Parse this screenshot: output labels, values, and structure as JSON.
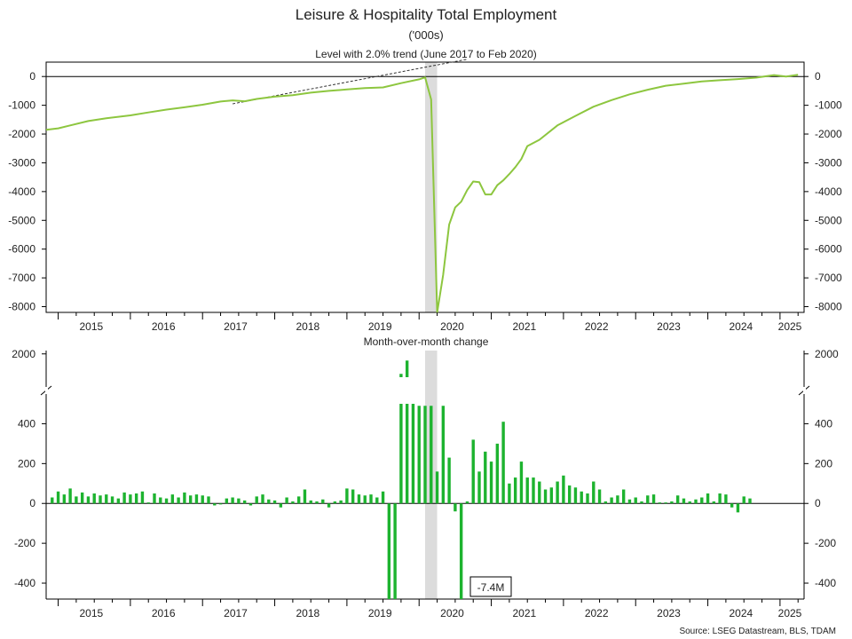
{
  "chart_data": {
    "title": "Leisure & Hospitality Total Employment",
    "subtitle": "('000s)",
    "source": "Source: LSEG Datastream, BLS, TDAM",
    "colors": {
      "level": "#8dc63f",
      "change": "#1db32f",
      "trend": "#333333",
      "recession": "#dcdcdc",
      "zero_line": "#000000"
    },
    "x_tick_labels": [
      "2015",
      "2016",
      "2017",
      "2018",
      "2019",
      "2020",
      "2021",
      "2022",
      "2023",
      "2024",
      "2025"
    ],
    "x_range": [
      "2014-11",
      "2025-05"
    ],
    "recession_shade": [
      "2020-02",
      "2020-04"
    ],
    "level_panel": {
      "type": "line",
      "title": "Level with 2.0% trend (June 2017 to Feb 2020)",
      "ylim": [
        -8200,
        500
      ],
      "y_ticks": [
        "0",
        "-1000",
        "-2000",
        "-3000",
        "-4000",
        "-5000",
        "-6000",
        "-7000",
        "-8000"
      ],
      "y_tick_values": [
        0,
        -1000,
        -2000,
        -3000,
        -4000,
        -5000,
        -6000,
        -7000,
        -8000
      ],
      "series": [
        {
          "values": [
            [
              "2014-11",
              -1850
            ],
            [
              "2015-01",
              -1800
            ],
            [
              "2015-03",
              -1700
            ],
            [
              "2015-06",
              -1550
            ],
            [
              "2015-09",
              -1450
            ],
            [
              "2016-01",
              -1350
            ],
            [
              "2016-04",
              -1250
            ],
            [
              "2016-07",
              -1150
            ],
            [
              "2016-10",
              -1070
            ],
            [
              "2017-01",
              -980
            ],
            [
              "2017-04",
              -870
            ],
            [
              "2017-06",
              -830
            ],
            [
              "2017-08",
              -860
            ],
            [
              "2017-10",
              -780
            ],
            [
              "2018-01",
              -700
            ],
            [
              "2018-04",
              -650
            ],
            [
              "2018-07",
              -560
            ],
            [
              "2018-10",
              -500
            ],
            [
              "2019-01",
              -450
            ],
            [
              "2019-04",
              -400
            ],
            [
              "2019-07",
              -380
            ],
            [
              "2019-10",
              -230
            ],
            [
              "2020-01",
              -100
            ],
            [
              "2020-02",
              -30
            ],
            [
              "2020-03",
              -800
            ],
            [
              "2020-04",
              -8200
            ],
            [
              "2020-05",
              -6900
            ],
            [
              "2020-06",
              -5150
            ],
            [
              "2020-07",
              -4550
            ],
            [
              "2020-08",
              -4350
            ],
            [
              "2020-09",
              -3950
            ],
            [
              "2020-10",
              -3650
            ],
            [
              "2020-11",
              -3670
            ],
            [
              "2020-12",
              -4100
            ],
            [
              "2021-01",
              -4100
            ],
            [
              "2021-02",
              -3780
            ],
            [
              "2021-03",
              -3610
            ],
            [
              "2021-04",
              -3390
            ],
            [
              "2021-05",
              -3150
            ],
            [
              "2021-06",
              -2870
            ],
            [
              "2021-07",
              -2420
            ],
            [
              "2021-09",
              -2200
            ],
            [
              "2021-12",
              -1700
            ],
            [
              "2022-03",
              -1370
            ],
            [
              "2022-06",
              -1050
            ],
            [
              "2022-09",
              -820
            ],
            [
              "2022-12",
              -620
            ],
            [
              "2023-03",
              -460
            ],
            [
              "2023-06",
              -320
            ],
            [
              "2023-09",
              -250
            ],
            [
              "2023-12",
              -170
            ],
            [
              "2024-03",
              -130
            ],
            [
              "2024-06",
              -90
            ],
            [
              "2024-09",
              -40
            ],
            [
              "2024-12",
              50
            ],
            [
              "2025-02",
              0
            ],
            [
              "2025-04",
              60
            ]
          ]
        }
      ],
      "trend_line": {
        "start": [
          "2017-06",
          -950
        ],
        "end": [
          "2020-09",
          600
        ]
      }
    },
    "change_panel": {
      "type": "bar",
      "title": "Month-over-month change",
      "annotation": "-7.4M",
      "y_ticks_lower": [
        "400",
        "200",
        "0",
        "-200",
        "-400"
      ],
      "y_tick_lower_values": [
        400,
        200,
        0,
        -200,
        -400
      ],
      "y_tick_upper": "2000",
      "ylim_lower": [
        -480,
        500
      ],
      "ylim_upper": [
        1300,
        2100
      ],
      "start_month": "2014-12",
      "values": [
        30,
        60,
        45,
        75,
        35,
        55,
        35,
        50,
        40,
        45,
        35,
        25,
        55,
        45,
        50,
        60,
        5,
        50,
        30,
        25,
        45,
        30,
        55,
        40,
        45,
        40,
        35,
        -10,
        -5,
        25,
        30,
        25,
        15,
        -10,
        35,
        45,
        20,
        15,
        -20,
        30,
        10,
        35,
        70,
        15,
        10,
        20,
        -20,
        10,
        15,
        75,
        70,
        45,
        40,
        45,
        30,
        60,
        -770,
        -7400,
        1400,
        1800,
        600,
        490,
        490,
        490,
        160,
        490,
        230,
        -40,
        -480,
        10,
        320,
        160,
        260,
        210,
        300,
        410,
        100,
        130,
        210,
        130,
        130,
        110,
        70,
        80,
        110,
        140,
        90,
        80,
        60,
        50,
        110,
        70,
        10,
        30,
        40,
        70,
        20,
        30,
        10,
        40,
        45,
        5,
        5,
        10,
        40,
        25,
        10,
        20,
        30,
        50,
        10,
        50,
        45,
        -20,
        -45,
        35,
        25
      ]
    }
  }
}
